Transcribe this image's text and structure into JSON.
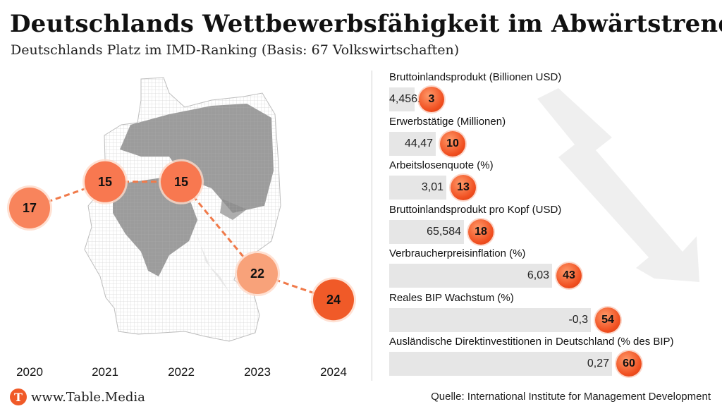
{
  "header": {
    "title": "Deutschlands Wettbewerbsfähigkeit im Abwärtstrend",
    "subtitle": "Deutschlands Platz im IMD-Ranking (Basis: 67 Volkswirtschaften)"
  },
  "chart_data": [
    {
      "type": "line",
      "title": "",
      "x": [
        "2020",
        "2021",
        "2022",
        "2023",
        "2024"
      ],
      "series": [
        {
          "values": [
            17,
            15,
            15,
            22,
            24
          ]
        }
      ],
      "colors": {
        "line": "#f07a4a",
        "marker": "#f05a28"
      }
    },
    {
      "type": "bar",
      "categories": [
        "Bruttoinlandsprodukt (Billionen USD)",
        "Erwerbstätige (Millionen)",
        "Arbeitslosenquote (%)",
        "Bruttoinlandsprodukt pro Kopf (USD)",
        "Verbraucherpreisinflation (%)",
        "Reales BIP Wachstum (%)",
        "Ausländische Direktinvestitionen in Deutschland (% des BIP)"
      ],
      "value_labels": [
        "4,456.1",
        "44,47",
        "3,01",
        "65,584",
        "6,03",
        "-0,3",
        "0,27"
      ],
      "ranks": [
        3,
        10,
        13,
        18,
        43,
        54,
        60
      ],
      "rank_max": 67,
      "colors": {
        "bar": "#e6e6e6",
        "badge": "#f05a28"
      }
    }
  ],
  "footer": {
    "logo_letter": "T",
    "site": "www.Table.Media",
    "source": "Quelle: International Institute for Management Development"
  }
}
